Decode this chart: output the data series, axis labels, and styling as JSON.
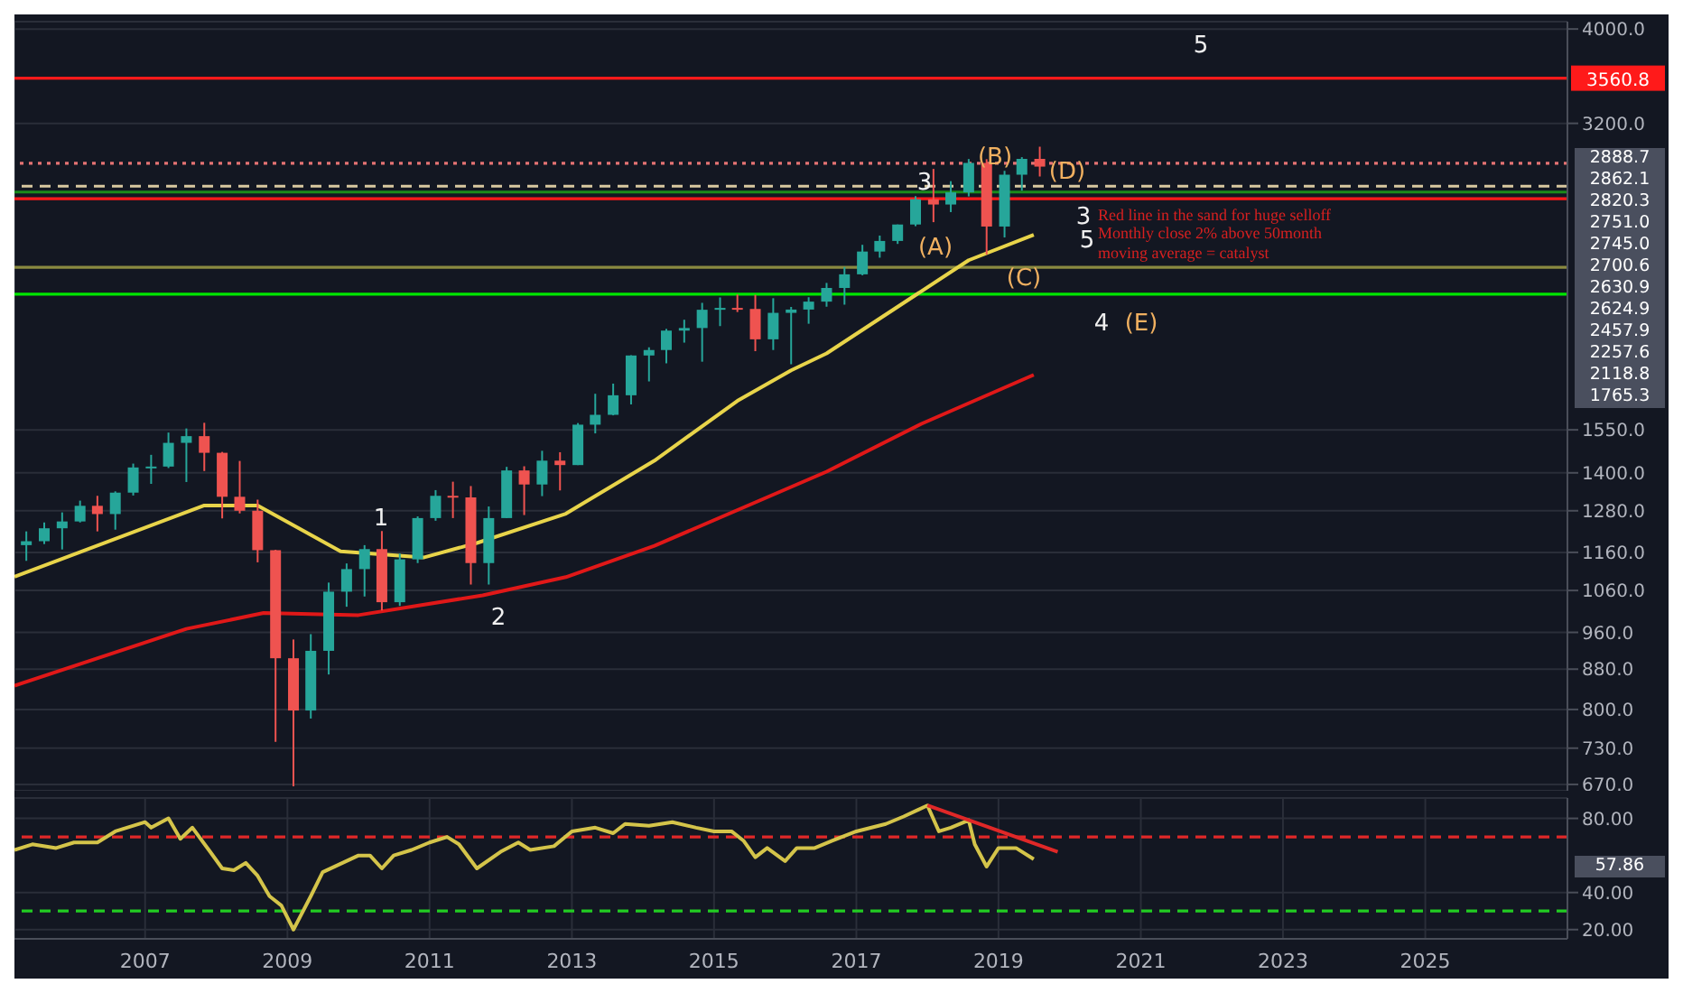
{
  "chart_data": [
    {
      "type": "candlestick",
      "x": [
        "2005-05",
        "2005-08",
        "2005-11",
        "2006-02",
        "2006-05",
        "2006-08",
        "2006-11",
        "2007-02",
        "2007-05",
        "2007-08",
        "2007-11",
        "2008-02",
        "2008-05",
        "2008-08",
        "2008-11",
        "2009-02",
        "2009-05",
        "2009-08",
        "2009-11",
        "2010-02",
        "2010-05",
        "2010-08",
        "2010-11",
        "2011-02",
        "2011-05",
        "2011-08",
        "2011-11",
        "2012-02",
        "2012-05",
        "2012-08",
        "2012-11",
        "2013-02",
        "2013-05",
        "2013-08",
        "2013-11",
        "2014-02",
        "2014-05",
        "2014-08",
        "2014-11",
        "2015-02",
        "2015-05",
        "2015-08",
        "2015-11",
        "2016-02",
        "2016-05",
        "2016-08",
        "2016-11",
        "2017-02",
        "2017-05",
        "2017-08",
        "2017-11",
        "2018-02",
        "2018-05",
        "2018-08",
        "2018-11",
        "2019-02",
        "2019-05",
        "2019-08"
      ],
      "ohlc": [
        [
          1180,
          1219,
          1137,
          1191
        ],
        [
          1191,
          1245,
          1183,
          1228
        ],
        [
          1228,
          1275,
          1168,
          1248
        ],
        [
          1248,
          1311,
          1245,
          1295
        ],
        [
          1295,
          1326,
          1219,
          1270
        ],
        [
          1270,
          1340,
          1224,
          1336
        ],
        [
          1336,
          1431,
          1327,
          1418
        ],
        [
          1418,
          1461,
          1364,
          1421
        ],
        [
          1421,
          1540,
          1416,
          1503
        ],
        [
          1503,
          1555,
          1370,
          1527
        ],
        [
          1527,
          1576,
          1406,
          1468
        ],
        [
          1468,
          1471,
          1257,
          1323
        ],
        [
          1323,
          1440,
          1272,
          1280
        ],
        [
          1280,
          1314,
          1133,
          1166
        ],
        [
          1166,
          1167,
          741,
          903
        ],
        [
          903,
          944,
          667,
          798
        ],
        [
          798,
          956,
          783,
          919
        ],
        [
          919,
          1080,
          869,
          1057
        ],
        [
          1057,
          1130,
          1020,
          1115
        ],
        [
          1115,
          1180,
          1045,
          1169
        ],
        [
          1169,
          1220,
          1011,
          1031
        ],
        [
          1031,
          1157,
          1022,
          1141
        ],
        [
          1141,
          1263,
          1131,
          1258
        ],
        [
          1258,
          1344,
          1250,
          1326
        ],
        [
          1326,
          1371,
          1258,
          1321
        ],
        [
          1321,
          1357,
          1075,
          1131
        ],
        [
          1131,
          1293,
          1075,
          1258
        ],
        [
          1258,
          1420,
          1258,
          1408
        ],
        [
          1408,
          1422,
          1267,
          1362
        ],
        [
          1362,
          1475,
          1325,
          1441
        ],
        [
          1441,
          1470,
          1343,
          1426
        ],
        [
          1426,
          1575,
          1426,
          1569
        ],
        [
          1569,
          1688,
          1537,
          1606
        ],
        [
          1606,
          1729,
          1604,
          1682
        ],
        [
          1682,
          1849,
          1646,
          1848
        ],
        [
          1848,
          1884,
          1738,
          1872
        ],
        [
          1872,
          1968,
          1814,
          1960
        ],
        [
          1960,
          2011,
          1905,
          1972
        ],
        [
          1972,
          2093,
          1821,
          2059
        ],
        [
          2059,
          2120,
          1981,
          2068
        ],
        [
          2068,
          2135,
          2048,
          2063
        ],
        [
          2063,
          2133,
          1867,
          1920
        ],
        [
          1920,
          2116,
          1872,
          2044
        ],
        [
          2044,
          2073,
          1810,
          2060
        ],
        [
          2060,
          2121,
          1992,
          2099
        ],
        [
          2099,
          2194,
          2074,
          2168
        ],
        [
          2168,
          2278,
          2084,
          2239
        ],
        [
          2239,
          2401,
          2234,
          2363
        ],
        [
          2363,
          2454,
          2329,
          2423
        ],
        [
          2423,
          2519,
          2406,
          2519
        ],
        [
          2519,
          2694,
          2509,
          2674
        ],
        [
          2674,
          2873,
          2533,
          2641
        ],
        [
          2641,
          2791,
          2594,
          2718
        ],
        [
          2718,
          2941,
          2692,
          2914
        ],
        [
          2914,
          2940,
          2347,
          2507
        ],
        [
          2507,
          2860,
          2443,
          2834
        ],
        [
          2834,
          2954,
          2729,
          2942
        ],
        [
          2942,
          3028,
          2822,
          2888.7
        ]
      ],
      "series": [
        {
          "type": "line",
          "color": "#e01818",
          "x": [
            "2005-03",
            "2007-08",
            "2008-09",
            "2010-01",
            "2011-10",
            "2012-12",
            "2014-03",
            "2016-08",
            "2017-12",
            "2019-07"
          ],
          "values": [
            846,
            968,
            1005,
            1000,
            1048,
            1094,
            1178,
            1404,
            1572,
            1765.3
          ]
        },
        {
          "type": "line",
          "color": "#e8d44a",
          "x": [
            "2005-03",
            "2007-11",
            "2008-08",
            "2009-10",
            "2010-12",
            "2011-09",
            "2012-12",
            "2014-03",
            "2015-05",
            "2016-02",
            "2016-08",
            "2018-08",
            "2019-07"
          ],
          "values": [
            1095,
            1296,
            1296,
            1163,
            1146,
            1186,
            1271,
            1441,
            1660,
            1784,
            1857,
            2315,
            2457.9
          ]
        }
      ],
      "log": "y",
      "ylim": [
        660,
        4070
      ],
      "yticks": [
        {
          "value": 670,
          "label": "670.0"
        },
        {
          "value": 730,
          "label": "730.0"
        },
        {
          "value": 800,
          "label": "800.0"
        },
        {
          "value": 880,
          "label": "880.0"
        },
        {
          "value": 960,
          "label": "960.0"
        },
        {
          "value": 1060,
          "label": "1060.0"
        },
        {
          "value": 1160,
          "label": "1160.0"
        },
        {
          "value": 1280,
          "label": "1280.0"
        },
        {
          "value": 1400,
          "label": "1400.0"
        },
        {
          "value": 1550,
          "label": "1550.0"
        },
        {
          "value": 3200,
          "label": "3200.0"
        },
        {
          "value": 4000,
          "label": "4000.0"
        }
      ],
      "xlim": [
        "2005-03",
        "2027-01"
      ],
      "xticks": [
        "2007",
        "2009",
        "2011",
        "2013",
        "2015",
        "2017",
        "2019",
        "2021",
        "2023",
        "2025"
      ],
      "tick_labels": "y",
      "grid": true,
      "ref_lines": [
        {
          "axis": "y",
          "value": 3560.8,
          "label": "3560.8",
          "color": "#ff1a1a"
        },
        {
          "axis": "y",
          "value": 2911,
          "color": "#e57373",
          "line_style": "dotted"
        },
        {
          "axis": "y",
          "value": 2758,
          "color": "#d8c8a0",
          "line_style": "dashed"
        },
        {
          "axis": "y",
          "value": 2720,
          "color": "#1b8a1b"
        },
        {
          "axis": "y",
          "value": 2677,
          "color": "#ff1a1a"
        },
        {
          "axis": "y",
          "value": 2276,
          "color": "#8a8a40"
        },
        {
          "axis": "y",
          "value": 2136,
          "color": "#00e600"
        }
      ],
      "annotations": [
        "2888.7",
        "2862.1",
        "2820.3",
        "2751.0",
        "2745.0",
        "2700.6",
        "2630.9",
        "2624.9",
        "2457.9",
        "2257.6",
        "2118.8",
        "1765.3",
        "1",
        "2",
        "3",
        "(A)",
        "(B)",
        "(C)",
        "(D)",
        "3",
        "5",
        "4",
        "(E)",
        "5",
        "Red line in the sand for huge selloff Monthly close 2% above 50month moving average = catalyst"
      ]
    },
    {
      "type": "line",
      "series": [
        {
          "color": "#d4c44a",
          "x": [
            "2005-03",
            "2005-06",
            "2005-10",
            "2006-01",
            "2006-05",
            "2006-08",
            "2007-01",
            "2007-02",
            "2007-05",
            "2007-07",
            "2007-09",
            "2007-12",
            "2008-02",
            "2008-04",
            "2008-06",
            "2008-08",
            "2008-10",
            "2008-12",
            "2009-02",
            "2009-05",
            "2009-07",
            "2010-01",
            "2010-03",
            "2010-05",
            "2010-07",
            "2010-10",
            "2011-01",
            "2011-04",
            "2011-06",
            "2011-09",
            "2012-01",
            "2012-04",
            "2012-06",
            "2012-10",
            "2013-01",
            "2013-05",
            "2013-08",
            "2013-10",
            "2014-02",
            "2014-06",
            "2014-10",
            "2015-01",
            "2015-04",
            "2015-06",
            "2015-08",
            "2015-10",
            "2016-01",
            "2016-03",
            "2016-06",
            "2016-09",
            "2017-01",
            "2017-06",
            "2017-09",
            "2018-01",
            "2018-03",
            "2018-05",
            "2018-08",
            "2018-09",
            "2018-11",
            "2019-01",
            "2019-04",
            "2019-07"
          ],
          "values": [
            63,
            66,
            64,
            67,
            67,
            73,
            78,
            75,
            80,
            69,
            75,
            62,
            53,
            52,
            56,
            49,
            38,
            33,
            20,
            38,
            51,
            60,
            60,
            53,
            60,
            63,
            67,
            70,
            66,
            53,
            62,
            67,
            63,
            65,
            73,
            75,
            72,
            77,
            76,
            78,
            75,
            73,
            73,
            68,
            59,
            64,
            57,
            64,
            64,
            68,
            73,
            77,
            81,
            87,
            73,
            75,
            79,
            66,
            54,
            64,
            64,
            58
          ]
        },
        {
          "color": "#e02828",
          "x": [
            "2018-01",
            "2019-11"
          ],
          "values": [
            87,
            62
          ]
        }
      ],
      "ylim": [
        15,
        91
      ],
      "yticks": [
        {
          "value": 20,
          "label": "20.00"
        },
        {
          "value": 40,
          "label": "40.00"
        },
        {
          "value": 80,
          "label": "80.00"
        }
      ],
      "xlim": [
        "2005-03",
        "2027-01"
      ],
      "xticks": [
        "2007",
        "2009",
        "2011",
        "2013",
        "2015",
        "2017",
        "2019",
        "2021",
        "2023",
        "2025"
      ],
      "grid": true,
      "ref_lines": [
        {
          "axis": "y",
          "value": 70,
          "color": "#e02828",
          "line_style": "dashed"
        },
        {
          "axis": "y",
          "value": 30,
          "color": "#22cc22",
          "line_style": "dashed"
        }
      ],
      "annotations": [
        "57.86"
      ]
    }
  ]
}
